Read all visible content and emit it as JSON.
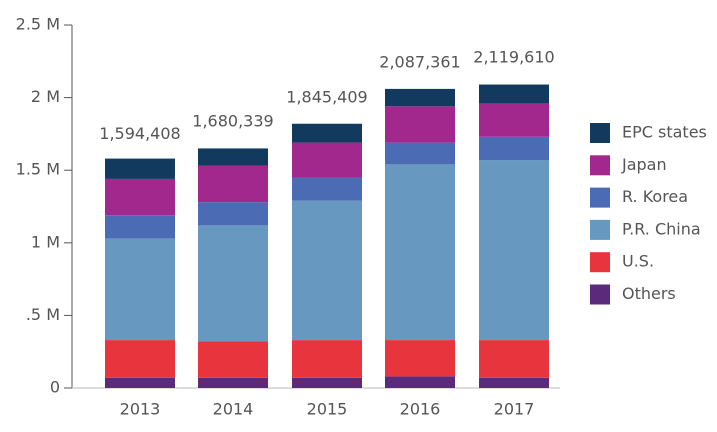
{
  "chart_data": {
    "type": "stacked_bar",
    "categories": [
      "2013",
      "2014",
      "2015",
      "2016",
      "2017"
    ],
    "series": [
      {
        "name": "Others",
        "color": "#5c2a7a",
        "values": [
          70000,
          70000,
          70000,
          80000,
          70000
        ]
      },
      {
        "name": "U.S.",
        "color": "#e8343d",
        "values": [
          260000,
          250000,
          260000,
          250000,
          260000
        ]
      },
      {
        "name": "P.R. China",
        "color": "#6698c0",
        "values": [
          700000,
          800000,
          960000,
          1210000,
          1240000
        ]
      },
      {
        "name": "R. Korea",
        "color": "#4b6cb4",
        "values": [
          160000,
          160000,
          160000,
          150000,
          160000
        ]
      },
      {
        "name": "Japan",
        "color": "#a2288e",
        "values": [
          250000,
          250000,
          240000,
          250000,
          230000
        ]
      },
      {
        "name": "EPC states",
        "color": "#113a5e",
        "values": [
          140000,
          120000,
          130000,
          120000,
          130000
        ]
      }
    ],
    "totals": [
      {
        "value": 1594408,
        "label": "1,594,408"
      },
      {
        "value": 1680339,
        "label": "1,680,339"
      },
      {
        "value": 1845409,
        "label": "1,845,409"
      },
      {
        "value": 2087361,
        "label": "2,087,361"
      },
      {
        "value": 2119610,
        "label": "2,119,610"
      }
    ],
    "ylim": [
      0,
      2500000
    ],
    "yticks": [
      {
        "value": 0,
        "label": "0"
      },
      {
        "value": 500000,
        "label": ".5 M"
      },
      {
        "value": 1000000,
        "label": "1 M"
      },
      {
        "value": 1500000,
        "label": "1.5 M"
      },
      {
        "value": 2000000,
        "label": "2 M"
      },
      {
        "value": 2500000,
        "label": "2.5 M"
      }
    ]
  }
}
